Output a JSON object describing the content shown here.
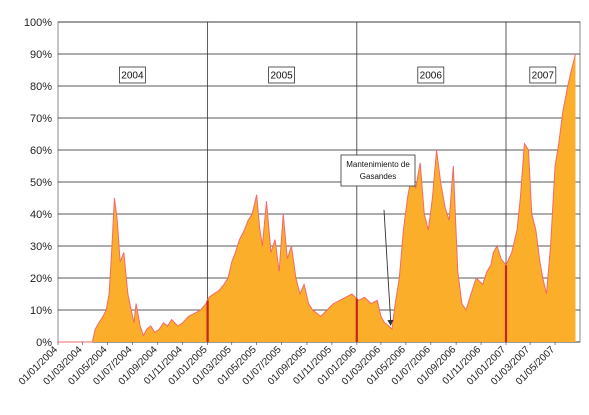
{
  "chart_data": {
    "type": "area",
    "title": "",
    "xlabel": "",
    "ylabel": "",
    "ylim": [
      0,
      100
    ],
    "y_ticks": [
      "0%",
      "10%",
      "20%",
      "30%",
      "40%",
      "50%",
      "60%",
      "70%",
      "80%",
      "90%",
      "100%"
    ],
    "x_ticks": [
      "01/01/2004",
      "01/03/2004",
      "01/05/2004",
      "01/07/2004",
      "01/09/2004",
      "01/11/2004",
      "01/01/2005",
      "01/03/2005",
      "01/05/2005",
      "01/07/2005",
      "01/09/2005",
      "01/11/2005",
      "01/01/2006",
      "01/03/2006",
      "01/05/2006",
      "01/07/2006",
      "01/09/2006",
      "01/11/2006",
      "01/01/2007",
      "01/03/2007",
      "01/05/2007"
    ],
    "xlim": [
      "2004-01-01",
      "2007-07-01"
    ],
    "grid": true,
    "year_dividers": [
      "2005-01-01",
      "2006-01-01",
      "2007-01-01"
    ],
    "year_labels": [
      {
        "text": "2004",
        "date": "2004-07-01"
      },
      {
        "text": "2005",
        "date": "2005-07-01"
      },
      {
        "text": "2006",
        "date": "2006-07-01"
      },
      {
        "text": "2007",
        "date": "2007-04-01"
      }
    ],
    "annotation": {
      "text_line1": "Mantenimiento de",
      "text_line2": "Gasandes",
      "target_date": "2006-03-25",
      "target_value": 5
    },
    "fill_color": "#FBAE2A",
    "edge_color": "#F26A6A",
    "marker_color": "#C0281E",
    "series": [
      {
        "x": [
          "2004-01-01",
          "2004-03-25",
          "2004-04-01",
          "2004-04-10",
          "2004-04-20",
          "2004-04-28",
          "2004-05-05",
          "2004-05-12",
          "2004-05-18",
          "2004-05-25",
          "2004-06-01",
          "2004-06-10",
          "2004-06-20",
          "2004-06-28",
          "2004-07-05",
          "2004-07-10",
          "2004-07-20",
          "2004-07-28",
          "2004-08-05",
          "2004-08-15",
          "2004-08-25",
          "2004-09-05",
          "2004-09-15",
          "2004-09-25",
          "2004-10-05",
          "2004-10-20",
          "2004-11-01",
          "2004-11-15",
          "2004-12-01",
          "2004-12-15",
          "2004-12-28",
          "2005-01-05",
          "2005-01-15",
          "2005-01-28",
          "2005-02-10",
          "2005-02-20",
          "2005-03-01",
          "2005-03-10",
          "2005-03-20",
          "2005-04-01",
          "2005-04-10",
          "2005-04-20",
          "2005-05-01",
          "2005-05-08",
          "2005-05-15",
          "2005-05-25",
          "2005-06-05",
          "2005-06-15",
          "2005-06-25",
          "2005-07-05",
          "2005-07-15",
          "2005-07-25",
          "2005-08-05",
          "2005-08-15",
          "2005-08-25",
          "2005-09-05",
          "2005-09-15",
          "2005-09-25",
          "2005-10-05",
          "2005-10-20",
          "2005-11-05",
          "2005-11-20",
          "2005-12-05",
          "2005-12-20",
          "2006-01-05",
          "2006-01-20",
          "2006-02-05",
          "2006-02-20",
          "2006-03-01",
          "2006-03-10",
          "2006-03-20",
          "2006-03-28",
          "2006-04-05",
          "2006-04-15",
          "2006-04-25",
          "2006-05-05",
          "2006-05-15",
          "2006-05-25",
          "2006-06-05",
          "2006-06-15",
          "2006-06-25",
          "2006-07-05",
          "2006-07-15",
          "2006-07-25",
          "2006-08-05",
          "2006-08-15",
          "2006-08-25",
          "2006-09-05",
          "2006-09-15",
          "2006-09-25",
          "2006-10-05",
          "2006-10-20",
          "2006-11-05",
          "2006-11-15",
          "2006-11-25",
          "2006-12-01",
          "2006-12-10",
          "2006-12-20",
          "2007-01-01",
          "2007-01-15",
          "2007-01-28",
          "2007-02-05",
          "2007-02-15",
          "2007-02-25",
          "2007-03-05",
          "2007-03-15",
          "2007-03-25",
          "2007-04-01",
          "2007-04-10",
          "2007-04-20",
          "2007-05-01",
          "2007-05-10",
          "2007-05-20",
          "2007-06-01",
          "2007-06-10",
          "2007-06-20"
        ],
        "y": [
          0,
          0,
          4,
          6,
          8,
          10,
          15,
          30,
          45,
          38,
          25,
          28,
          15,
          10,
          6,
          12,
          5,
          2,
          4,
          5,
          3,
          4,
          6,
          5,
          7,
          5,
          6,
          8,
          9,
          10,
          12,
          14,
          15,
          16,
          18,
          20,
          25,
          28,
          32,
          35,
          38,
          40,
          46,
          36,
          30,
          44,
          28,
          32,
          22,
          40,
          26,
          30,
          20,
          15,
          18,
          12,
          10,
          9,
          8,
          10,
          12,
          13,
          14,
          15,
          13,
          14,
          12,
          13,
          8,
          6,
          5,
          4,
          12,
          20,
          35,
          45,
          52,
          48,
          56,
          40,
          35,
          45,
          60,
          50,
          42,
          38,
          55,
          22,
          12,
          10,
          14,
          20,
          18,
          22,
          24,
          28,
          30,
          26,
          24,
          28,
          35,
          45,
          62,
          60,
          40,
          35,
          25,
          20,
          15,
          30,
          55,
          62,
          72,
          80,
          85,
          90
        ]
      }
    ]
  }
}
